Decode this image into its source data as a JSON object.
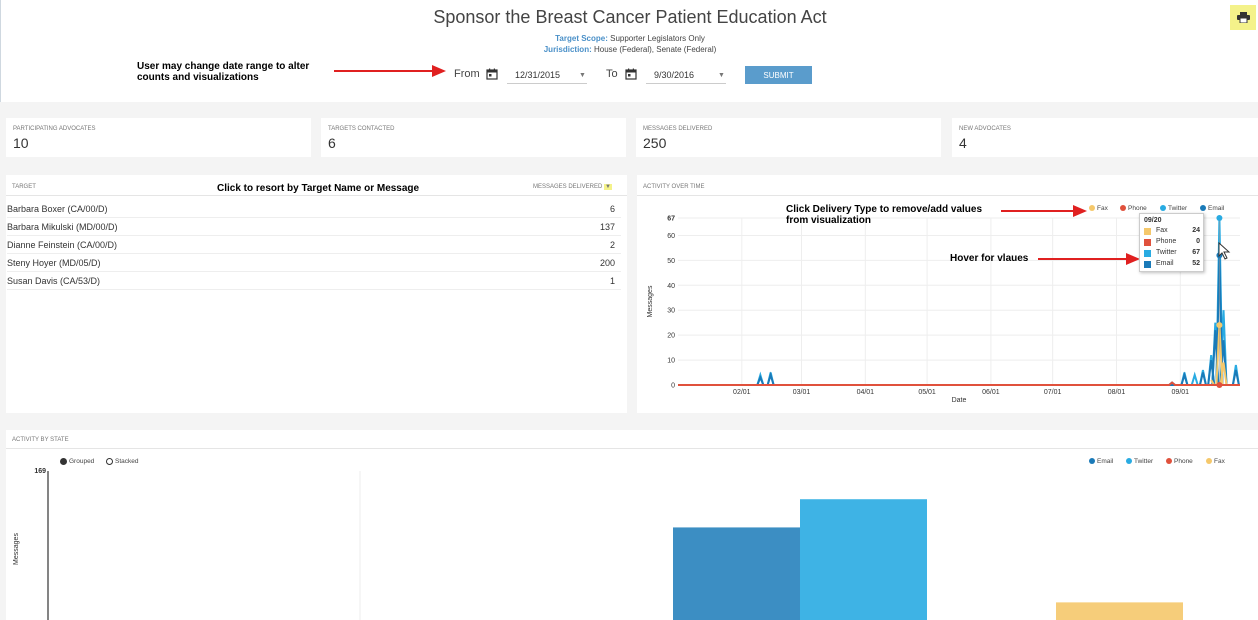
{
  "header": {
    "title": "Sponsor the Breast Cancer Patient Education Act",
    "target_scope_label": "Target Scope:",
    "target_scope_value": "Supporter Legislators Only",
    "jurisdiction_label": "Jurisdiction:",
    "jurisdiction_value": "House (Federal), Senate (Federal)",
    "print_icon": "printer-icon"
  },
  "date_filter": {
    "from_label": "From",
    "from_value": "12/31/2015",
    "to_label": "To",
    "to_value": "9/30/2016",
    "submit_label": "SUBMIT",
    "calendar_icon": "calendar-icon"
  },
  "stats": [
    {
      "label": "PARTICIPATING ADVOCATES",
      "value": "10"
    },
    {
      "label": "TARGETS CONTACTED",
      "value": "6"
    },
    {
      "label": "MESSAGES DELIVERED",
      "value": "250"
    },
    {
      "label": "NEW ADVOCATES",
      "value": "4"
    }
  ],
  "targets": {
    "col_target": "TARGET",
    "col_messages": "MESSAGES DELIVERED",
    "rows": [
      {
        "name": "Barbara Boxer (CA/00/D)",
        "messages": "6"
      },
      {
        "name": "Barbara Mikulski (MD/00/D)",
        "messages": "137"
      },
      {
        "name": "Dianne Feinstein (CA/00/D)",
        "messages": "2"
      },
      {
        "name": "Steny Hoyer (MD/05/D)",
        "messages": "200"
      },
      {
        "name": "Susan Davis (CA/53/D)",
        "messages": "1"
      }
    ]
  },
  "annotations": {
    "date_range": "User may change date range to alter counts and visualizations",
    "resort": "Click to resort by Target Name or Message",
    "delivery_type": "Click Delivery Type to remove/add values from visualization",
    "hover": "Hover for vlaues"
  },
  "colors": {
    "fax": "#f5c86b",
    "phone": "#e0513c",
    "twitter": "#29abe2",
    "email": "#1a7ab8",
    "arrow": "#e02020",
    "accent": "#5a9ccc"
  },
  "activity_over_time": {
    "section_label": "ACTIVITY OVER TIME",
    "legend": [
      "Fax",
      "Phone",
      "Twitter",
      "Email"
    ],
    "tooltip": {
      "date": "09/20",
      "rows": [
        {
          "name": "Fax",
          "value": "24"
        },
        {
          "name": "Phone",
          "value": "0"
        },
        {
          "name": "Twitter",
          "value": "67"
        },
        {
          "name": "Email",
          "value": "52"
        }
      ]
    }
  },
  "activity_by_state": {
    "section_label": "ACTIVITY BY STATE",
    "mode_grouped": "Grouped",
    "mode_stacked": "Stacked",
    "legend": [
      "Email",
      "Twitter",
      "Phone",
      "Fax"
    ]
  },
  "chart_data": [
    {
      "type": "line",
      "xlabel": "Date",
      "ylabel": "Messages",
      "ylim": [
        0,
        67
      ],
      "yticks": [
        "67",
        "60",
        "50",
        "40",
        "30",
        "20",
        "10",
        "0"
      ],
      "x_ticks": [
        "02/01",
        "03/01",
        "04/01",
        "05/01",
        "06/01",
        "07/01",
        "08/01",
        "09/01"
      ],
      "series": [
        {
          "name": "Twitter",
          "x": [
            "2016-01-01",
            "2016-02-10",
            "2016-02-15",
            "2016-08-28",
            "2016-09-03",
            "2016-09-08",
            "2016-09-12",
            "2016-09-16",
            "2016-09-18",
            "2016-09-20",
            "2016-09-22",
            "2016-09-28"
          ],
          "values": [
            0,
            4,
            5,
            1,
            5,
            4,
            6,
            12,
            25,
            67,
            30,
            8
          ]
        },
        {
          "name": "Email",
          "x": [
            "2016-01-01",
            "2016-02-10",
            "2016-02-15",
            "2016-09-03",
            "2016-09-12",
            "2016-09-16",
            "2016-09-18",
            "2016-09-20",
            "2016-09-22",
            "2016-09-28"
          ],
          "values": [
            0,
            3,
            4,
            4,
            5,
            10,
            22,
            52,
            18,
            6
          ]
        },
        {
          "name": "Fax",
          "x": [
            "2016-09-16",
            "2016-09-20",
            "2016-09-22"
          ],
          "values": [
            2,
            24,
            9
          ]
        },
        {
          "name": "Phone",
          "x": [
            "2016-01-01",
            "2016-08-28",
            "2016-09-20"
          ],
          "values": [
            0,
            1,
            0
          ]
        }
      ]
    },
    {
      "type": "bar",
      "ylabel": "Messages",
      "ymax_label": "169",
      "ylim": [
        0,
        169
      ],
      "series": [
        {
          "name": "Email",
          "values": [
            105
          ]
        },
        {
          "name": "Twitter",
          "values": [
            137
          ]
        },
        {
          "name": "Phone",
          "values": [
            0
          ]
        },
        {
          "name": "Fax",
          "values": [
            20
          ]
        }
      ]
    }
  ]
}
